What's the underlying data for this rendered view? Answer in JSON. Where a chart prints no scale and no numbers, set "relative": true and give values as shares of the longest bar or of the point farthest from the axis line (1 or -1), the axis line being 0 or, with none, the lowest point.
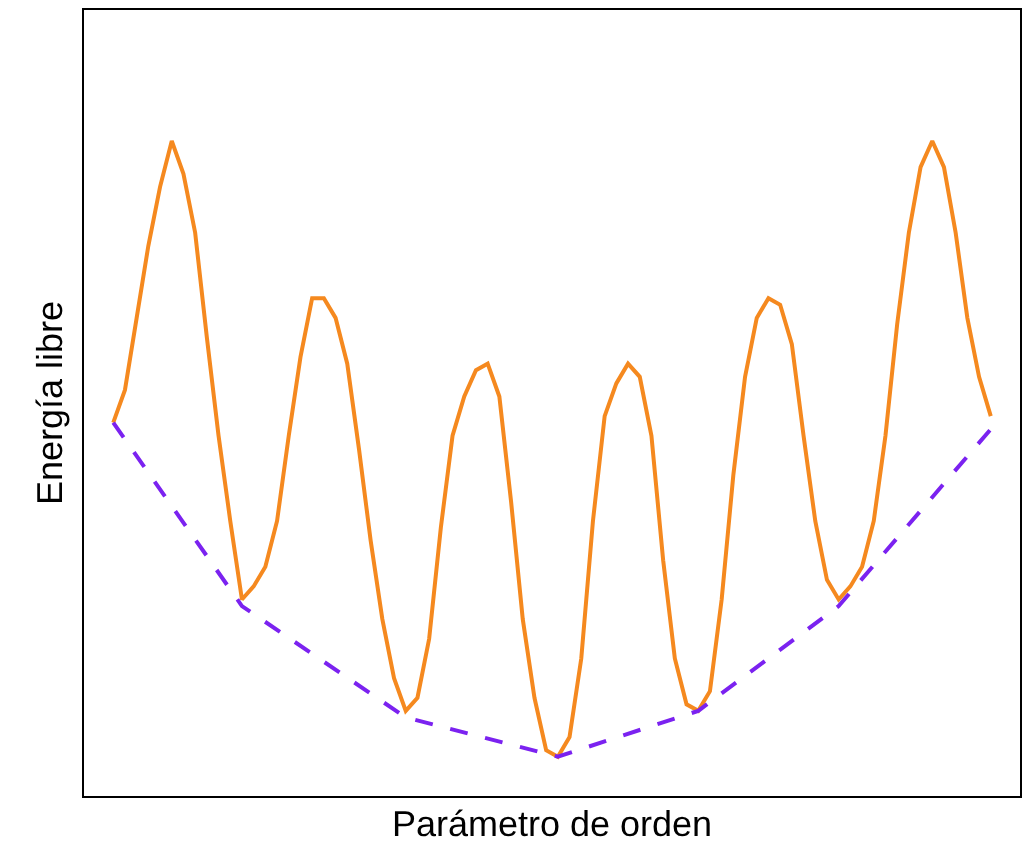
{
  "chart_data": {
    "type": "line",
    "xlabel": "Parámetro de orden",
    "ylabel": "Energía libre",
    "relative": true,
    "legend": false,
    "categories": [
      null,
      null,
      null,
      null,
      null,
      null,
      null,
      null,
      null,
      null,
      null,
      null,
      null,
      null,
      null,
      null,
      null,
      null,
      null,
      null,
      null,
      null,
      null,
      null,
      null,
      null,
      null,
      null,
      null,
      null,
      null,
      null,
      null,
      null,
      null,
      null,
      null,
      null,
      null,
      null,
      null,
      null,
      null,
      null,
      null,
      null,
      null,
      null,
      null,
      null,
      null,
      null,
      null,
      null,
      null,
      null,
      null,
      null,
      null,
      null,
      null,
      null,
      null,
      null,
      null,
      null,
      null,
      null,
      null,
      null,
      null,
      null,
      null,
      null,
      null,
      null
    ],
    "series": [
      {
        "color": "#f5891f",
        "line_style": "solid",
        "values": [
          0.57,
          0.62,
          0.73,
          0.84,
          0.93,
          1.0,
          0.95,
          0.86,
          0.7,
          0.55,
          0.42,
          0.3,
          0.32,
          0.35,
          0.42,
          0.55,
          0.67,
          0.76,
          0.76,
          0.73,
          0.66,
          0.53,
          0.39,
          0.27,
          0.18,
          0.13,
          0.15,
          0.24,
          0.41,
          0.55,
          0.61,
          0.65,
          0.66,
          0.61,
          0.45,
          0.27,
          0.15,
          0.07,
          0.06,
          0.09,
          0.21,
          0.42,
          0.58,
          0.63,
          0.66,
          0.64,
          0.55,
          0.36,
          0.21,
          0.14,
          0.13,
          0.16,
          0.3,
          0.49,
          0.64,
          0.73,
          0.76,
          0.75,
          0.69,
          0.55,
          0.42,
          0.33,
          0.3,
          0.32,
          0.35,
          0.42,
          0.55,
          0.72,
          0.86,
          0.96,
          1.0,
          0.96,
          0.86,
          0.73,
          0.64,
          0.58
        ]
      },
      {
        "color": "#7b22f0",
        "line_style": "dashed",
        "values": [
          0.57,
          null,
          null,
          null,
          null,
          null,
          null,
          null,
          null,
          null,
          null,
          0.29,
          null,
          null,
          null,
          null,
          null,
          null,
          null,
          null,
          null,
          null,
          null,
          null,
          null,
          0.12,
          null,
          null,
          null,
          null,
          null,
          null,
          null,
          null,
          null,
          null,
          null,
          null,
          0.06,
          null,
          null,
          null,
          null,
          null,
          null,
          null,
          null,
          null,
          null,
          null,
          0.13,
          null,
          null,
          null,
          null,
          null,
          null,
          null,
          null,
          null,
          null,
          null,
          0.29,
          null,
          null,
          null,
          null,
          null,
          null,
          null,
          null,
          null,
          null,
          null,
          null,
          0.56
        ]
      }
    ]
  }
}
